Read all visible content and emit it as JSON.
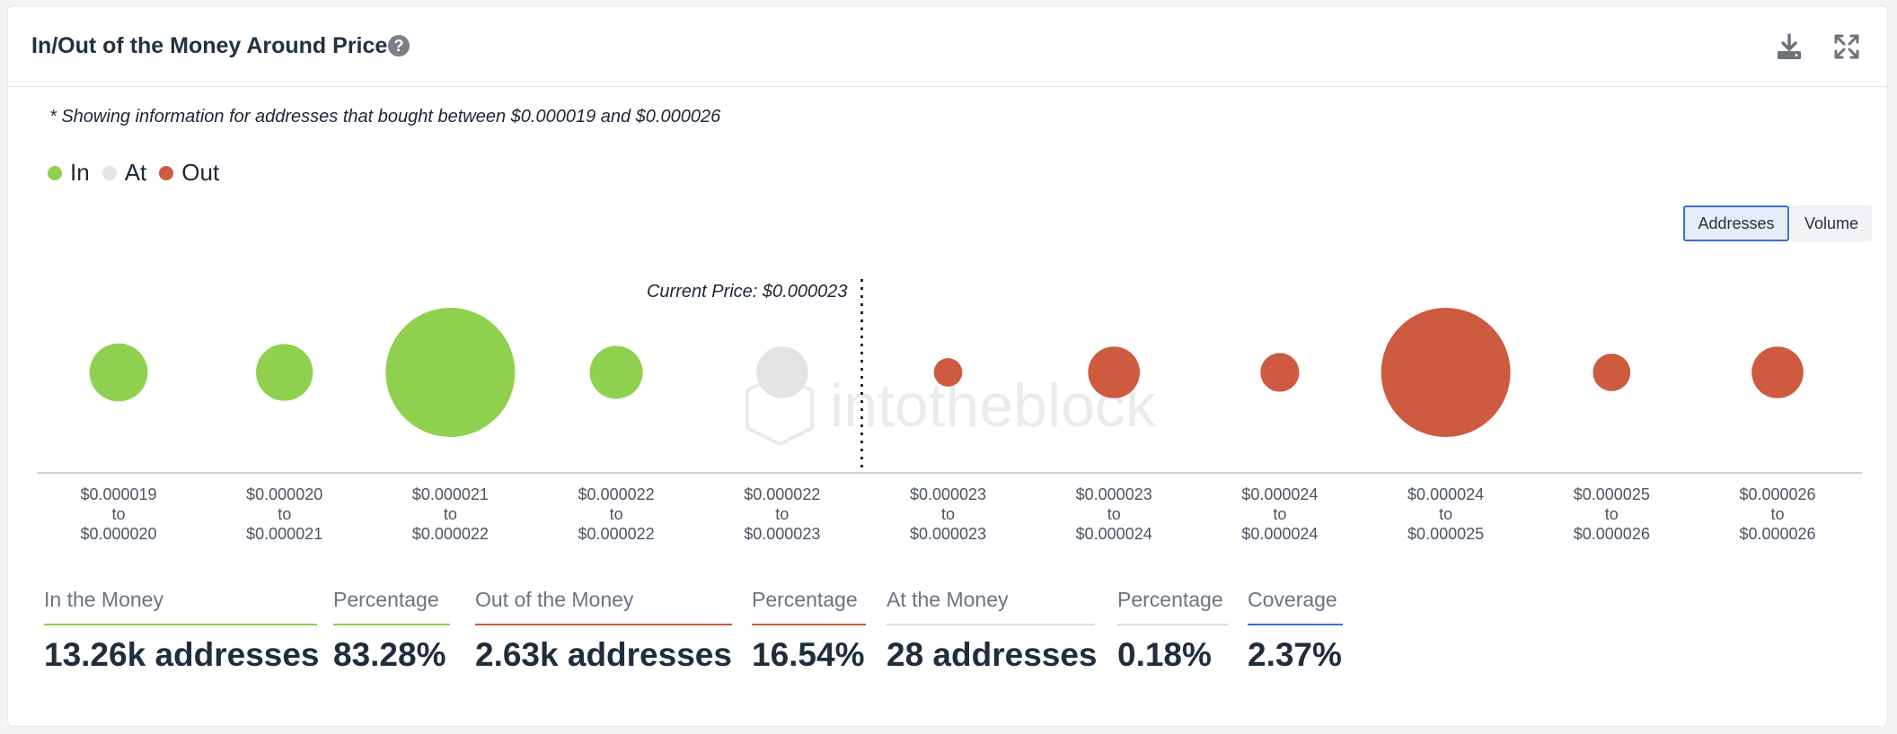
{
  "header": {
    "title": "In/Out of the Money Around Price",
    "help_icon": "question-circle-icon"
  },
  "note": "* Showing information for addresses that bought between $0.000019 and $0.000026",
  "legend": [
    {
      "label": "In",
      "color": "#8fd14f"
    },
    {
      "label": "At",
      "color": "#e3e3e3"
    },
    {
      "label": "Out",
      "color": "#ce5a40"
    }
  ],
  "toggle": {
    "addresses": "Addresses",
    "volume": "Volume"
  },
  "chart_data": {
    "type": "bubble",
    "current_price_label": "Current Price: $0.000023",
    "watermark": "intotheblock",
    "categories": [
      {
        "from": "$0.000019",
        "to": "$0.000020",
        "status": "in",
        "relative_size": 0.45
      },
      {
        "from": "$0.000020",
        "to": "$0.000021",
        "status": "in",
        "relative_size": 0.44
      },
      {
        "from": "$0.000021",
        "to": "$0.000022",
        "status": "in",
        "relative_size": 1.0
      },
      {
        "from": "$0.000022",
        "to": "$0.000022",
        "status": "in",
        "relative_size": 0.41
      },
      {
        "from": "$0.000022",
        "to": "$0.000023",
        "status": "at",
        "relative_size": 0.4
      },
      {
        "from": "$0.000023",
        "to": "$0.000023",
        "status": "out",
        "relative_size": 0.22
      },
      {
        "from": "$0.000023",
        "to": "$0.000024",
        "status": "out",
        "relative_size": 0.4
      },
      {
        "from": "$0.000024",
        "to": "$0.000024",
        "status": "out",
        "relative_size": 0.3
      },
      {
        "from": "$0.000024",
        "to": "$0.000025",
        "status": "out",
        "relative_size": 1.0
      },
      {
        "from": "$0.000025",
        "to": "$0.000026",
        "status": "out",
        "relative_size": 0.29
      },
      {
        "from": "$0.000026",
        "to": "$0.000026",
        "status": "out",
        "relative_size": 0.4
      }
    ],
    "connector": "to"
  },
  "stats": [
    {
      "label": "In the Money",
      "value": "13.26k addresses",
      "color": "#8fd14f"
    },
    {
      "label": "Percentage",
      "value": "83.28%",
      "color": "#8fd14f"
    },
    {
      "label": "Out of the Money",
      "value": "2.63k addresses",
      "color": "#ce5a40"
    },
    {
      "label": "Percentage",
      "value": "16.54%",
      "color": "#ce5a40"
    },
    {
      "label": "At the Money",
      "value": "28 addresses",
      "color": "#dcdcdc"
    },
    {
      "label": "Percentage",
      "value": "0.18%",
      "color": "#dcdcdc"
    },
    {
      "label": "Coverage",
      "value": "2.37%",
      "color": "#3d6fd4"
    }
  ]
}
